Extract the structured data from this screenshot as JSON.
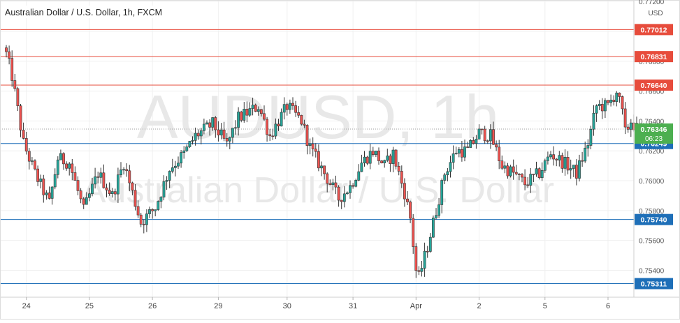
{
  "chart_data": {
    "type": "candlestick",
    "title": "Australian Dollar / U.S. Dollar, 1h, FXCM",
    "watermark_symbol": "AUDUSD, 1h",
    "watermark_name": "Australian Dollar / U.S. Dollar",
    "currency": "USD",
    "ylim": [
      0.7522,
      0.7721
    ],
    "y_ticks": [
      "0.77200",
      "0.77000",
      "0.76800",
      "0.76600",
      "0.76400",
      "0.76200",
      "0.76000",
      "0.75800",
      "0.75600",
      "0.75400"
    ],
    "y_tick_values": [
      0.772,
      0.77,
      0.768,
      0.766,
      0.764,
      0.762,
      0.76,
      0.758,
      0.756,
      0.754
    ],
    "x_ticks": [
      "24",
      "25",
      "26",
      "29",
      "30",
      "31",
      "Apr",
      "2",
      "5",
      "6"
    ],
    "x_tick_index": [
      7,
      29,
      51,
      74,
      98,
      121,
      143,
      165,
      188,
      210
    ],
    "resistance_levels": [
      {
        "label": "0.77012",
        "value": 0.77012,
        "color": "#e74c3c"
      },
      {
        "label": "0.76831",
        "value": 0.76831,
        "color": "#e74c3c"
      },
      {
        "label": "0.76640",
        "value": 0.7664,
        "color": "#e74c3c"
      }
    ],
    "support_levels": [
      {
        "label": "0.76249",
        "value": 0.76249,
        "color": "#1e6fb8"
      },
      {
        "label": "0.75740",
        "value": 0.7574,
        "color": "#1e6fb8"
      },
      {
        "label": "0.75311",
        "value": 0.75311,
        "color": "#1e6fb8"
      }
    ],
    "current_price": {
      "label": "0.76346",
      "value": 0.76346,
      "countdown": "06:23",
      "color": "#4caf50"
    },
    "waypoints": [
      [
        0,
        0.7685
      ],
      [
        2,
        0.767
      ],
      [
        6,
        0.7625
      ],
      [
        10,
        0.7605
      ],
      [
        15,
        0.7585
      ],
      [
        18,
        0.7615
      ],
      [
        22,
        0.7612
      ],
      [
        27,
        0.758
      ],
      [
        32,
        0.7605
      ],
      [
        37,
        0.759
      ],
      [
        41,
        0.7612
      ],
      [
        47,
        0.7572
      ],
      [
        52,
        0.7582
      ],
      [
        57,
        0.7608
      ],
      [
        62,
        0.7618
      ],
      [
        66,
        0.763
      ],
      [
        72,
        0.7638
      ],
      [
        77,
        0.7624
      ],
      [
        81,
        0.7642
      ],
      [
        88,
        0.765
      ],
      [
        92,
        0.763
      ],
      [
        98,
        0.765
      ],
      [
        103,
        0.764
      ],
      [
        106,
        0.7622
      ],
      [
        111,
        0.7605
      ],
      [
        116,
        0.7588
      ],
      [
        120,
        0.7596
      ],
      [
        124,
        0.7612
      ],
      [
        128,
        0.762
      ],
      [
        132,
        0.761
      ],
      [
        135,
        0.7618
      ],
      [
        139,
        0.7592
      ],
      [
        141,
        0.7575
      ],
      [
        143,
        0.754
      ],
      [
        144,
        0.7535
      ],
      [
        147,
        0.7556
      ],
      [
        150,
        0.758
      ],
      [
        153,
        0.7605
      ],
      [
        157,
        0.762
      ],
      [
        161,
        0.762
      ],
      [
        165,
        0.7632
      ],
      [
        169,
        0.763
      ],
      [
        173,
        0.761
      ],
      [
        177,
        0.7605
      ],
      [
        181,
        0.7598
      ],
      [
        186,
        0.7605
      ],
      [
        190,
        0.7618
      ],
      [
        196,
        0.761
      ],
      [
        199,
        0.7605
      ],
      [
        203,
        0.7625
      ],
      [
        206,
        0.765
      ],
      [
        210,
        0.765
      ],
      [
        213,
        0.766
      ],
      [
        215,
        0.7645
      ],
      [
        216,
        0.7632
      ],
      [
        218,
        0.764
      ],
      [
        220,
        0.7635
      ]
    ]
  }
}
